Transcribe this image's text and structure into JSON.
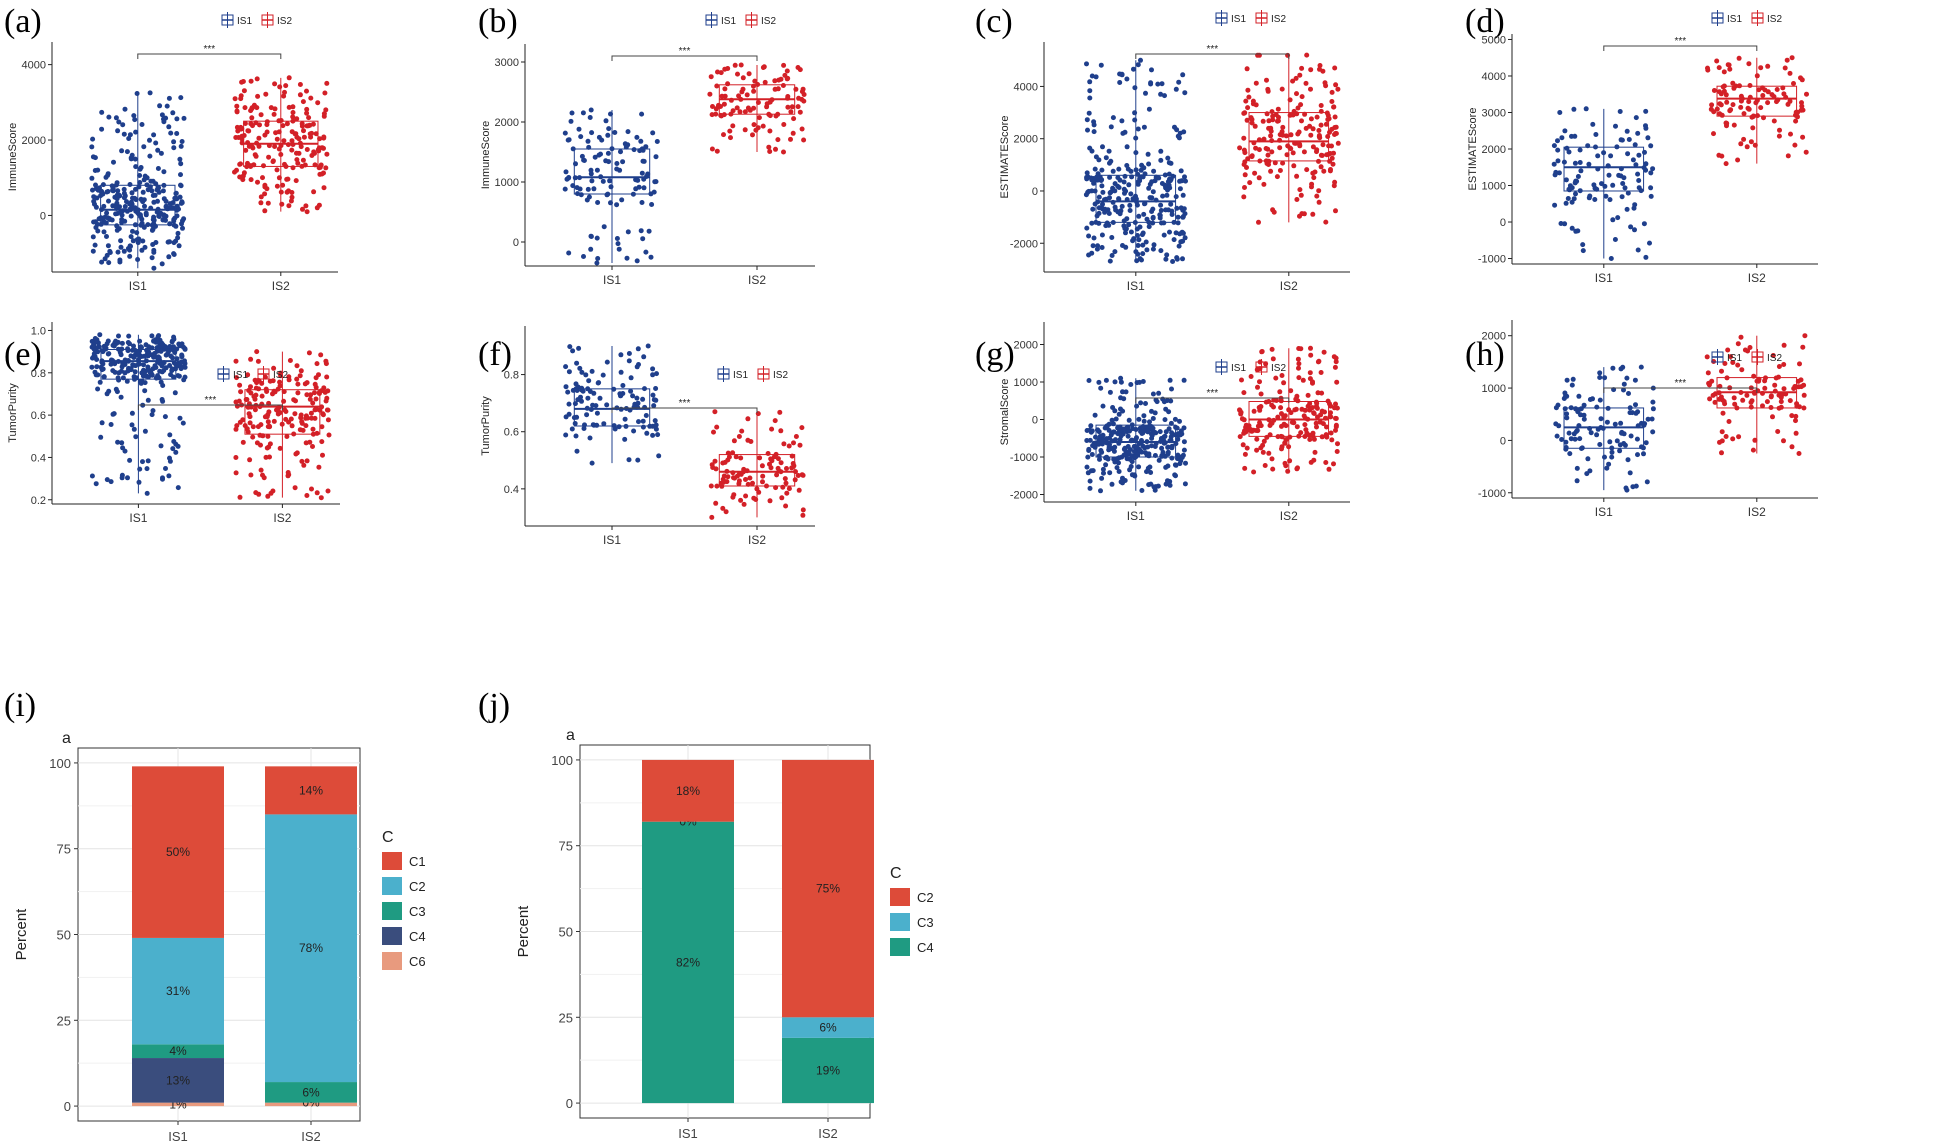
{
  "chart_data": [
    {
      "panel": "(a)",
      "type": "box-scatter",
      "title": "",
      "xlabel": "",
      "ylabel": "ImmuneScore",
      "categories": [
        "IS1",
        "IS2"
      ],
      "legend": [
        "IS1",
        "IS2"
      ],
      "significance": "***",
      "ylim": [
        -1500,
        4600
      ],
      "yticks": [
        0,
        2000,
        4000
      ],
      "series": [
        {
          "name": "IS1",
          "color": "#1f3f8c",
          "q1": -250,
          "median": 150,
          "q3": 800,
          "lower": -1400,
          "upper": 3250,
          "n": 300
        },
        {
          "name": "IS2",
          "color": "#d32027",
          "q1": 1300,
          "median": 1900,
          "q3": 2500,
          "lower": 100,
          "upper": 3650,
          "n": 200
        }
      ]
    },
    {
      "panel": "(b)",
      "type": "box-scatter",
      "title": "",
      "xlabel": "",
      "ylabel": "ImmuneScore",
      "categories": [
        "IS1",
        "IS2"
      ],
      "legend": [
        "IS1",
        "IS2"
      ],
      "significance": "***",
      "ylim": [
        -400,
        3300
      ],
      "yticks": [
        0,
        1000,
        2000,
        3000
      ],
      "series": [
        {
          "name": "IS1",
          "color": "#1f3f8c",
          "q1": 800,
          "median": 1080,
          "q3": 1550,
          "lower": -350,
          "upper": 2200,
          "n": 120
        },
        {
          "name": "IS2",
          "color": "#d32027",
          "q1": 2130,
          "median": 2380,
          "q3": 2620,
          "lower": 1500,
          "upper": 2950,
          "n": 110
        }
      ]
    },
    {
      "panel": "(c)",
      "type": "box-scatter",
      "title": "",
      "xlabel": "",
      "ylabel": "ESTIMATEScore",
      "categories": [
        "IS1",
        "IS2"
      ],
      "legend": [
        "IS1",
        "IS2"
      ],
      "significance": "***",
      "ylim": [
        -3100,
        5700
      ],
      "yticks": [
        -2000,
        0,
        2000,
        4000
      ],
      "series": [
        {
          "name": "IS1",
          "color": "#1f3f8c",
          "q1": -1200,
          "median": -400,
          "q3": 600,
          "lower": -2700,
          "upper": 5000,
          "n": 300
        },
        {
          "name": "IS2",
          "color": "#d32027",
          "q1": 1150,
          "median": 1900,
          "q3": 3000,
          "lower": -1200,
          "upper": 5200,
          "n": 200
        }
      ]
    },
    {
      "panel": "(d)",
      "type": "box-scatter",
      "title": "",
      "xlabel": "",
      "ylabel": "ESTIMATEScore",
      "categories": [
        "IS1",
        "IS2"
      ],
      "legend": [
        "IS1",
        "IS2"
      ],
      "significance": "***",
      "ylim": [
        -1150,
        5150
      ],
      "yticks": [
        -1000,
        0,
        1000,
        2000,
        3000,
        4000,
        5000
      ],
      "series": [
        {
          "name": "IS1",
          "color": "#1f3f8c",
          "q1": 850,
          "median": 1500,
          "q3": 2050,
          "lower": -1000,
          "upper": 3100,
          "n": 120
        },
        {
          "name": "IS2",
          "color": "#d32027",
          "q1": 2900,
          "median": 3380,
          "q3": 3720,
          "lower": 1600,
          "upper": 4500,
          "n": 110
        }
      ]
    },
    {
      "panel": "(e)",
      "type": "box-scatter",
      "title": "",
      "xlabel": "",
      "ylabel": "TumorPurity",
      "categories": [
        "IS1",
        "IS2"
      ],
      "legend": [
        "IS1",
        "IS2"
      ],
      "significance": "***",
      "ylim": [
        0.18,
        1.04
      ],
      "yticks": [
        "0.2",
        "0.4",
        "0.6",
        "0.8",
        "1.0"
      ],
      "series": [
        {
          "name": "IS1",
          "color": "#1f3f8c",
          "q1": 0.77,
          "median": 0.855,
          "q3": 0.91,
          "lower": 0.23,
          "upper": 0.98,
          "n": 300
        },
        {
          "name": "IS2",
          "color": "#d32027",
          "q1": 0.51,
          "median": 0.64,
          "q3": 0.72,
          "lower": 0.21,
          "upper": 0.9,
          "n": 200
        }
      ]
    },
    {
      "panel": "(f)",
      "type": "box-scatter",
      "title": "",
      "xlabel": "",
      "ylabel": "TumorPurity",
      "categories": [
        "IS1",
        "IS2"
      ],
      "legend": [
        "IS1",
        "IS2"
      ],
      "significance": "***",
      "ylim": [
        0.27,
        0.97
      ],
      "yticks": [
        "0.4",
        "0.6",
        "0.8"
      ],
      "series": [
        {
          "name": "IS1",
          "color": "#1f3f8c",
          "q1": 0.62,
          "median": 0.68,
          "q3": 0.75,
          "lower": 0.49,
          "upper": 0.9,
          "n": 120
        },
        {
          "name": "IS2",
          "color": "#d32027",
          "q1": 0.41,
          "median": 0.46,
          "q3": 0.52,
          "lower": 0.3,
          "upper": 0.67,
          "n": 110
        }
      ]
    },
    {
      "panel": "(g)",
      "type": "box-scatter",
      "title": "",
      "xlabel": "",
      "ylabel": "StromalScore",
      "categories": [
        "IS1",
        "IS2"
      ],
      "legend": [
        "IS1",
        "IS2"
      ],
      "significance": "***",
      "ylim": [
        -2200,
        2600
      ],
      "yticks": [
        -2000,
        -1000,
        0,
        1000,
        2000
      ],
      "series": [
        {
          "name": "IS1",
          "color": "#1f3f8c",
          "q1": -1000,
          "median": -600,
          "q3": -150,
          "lower": -1900,
          "upper": 1100,
          "n": 300
        },
        {
          "name": "IS2",
          "color": "#d32027",
          "q1": -450,
          "median": 0,
          "q3": 480,
          "lower": -1400,
          "upper": 1900,
          "n": 200
        }
      ]
    },
    {
      "panel": "(h)",
      "type": "box-scatter",
      "title": "",
      "xlabel": "",
      "ylabel": "",
      "categories": [
        "IS1",
        "IS2"
      ],
      "legend": [
        "IS1",
        "IS2"
      ],
      "significance": "***",
      "ylim": [
        -1100,
        2300
      ],
      "yticks": [
        -1000,
        0,
        1000,
        2000
      ],
      "series": [
        {
          "name": "IS1",
          "color": "#1f3f8c",
          "q1": -150,
          "median": 250,
          "q3": 620,
          "lower": -950,
          "upper": 1400,
          "n": 120
        },
        {
          "name": "IS2",
          "color": "#d32027",
          "q1": 620,
          "median": 920,
          "q3": 1200,
          "lower": -250,
          "upper": 2000,
          "n": 110
        }
      ]
    },
    {
      "panel": "(i)",
      "type": "bar",
      "stacked": true,
      "title": "a",
      "xlabel": "",
      "ylabel": "Percent",
      "categories": [
        "IS1",
        "IS2"
      ],
      "ylim": [
        0,
        100
      ],
      "yticks": [
        0,
        25,
        50,
        75,
        100
      ],
      "legend_title": "C",
      "legend": [
        "C1",
        "C2",
        "C3",
        "C4",
        "C6"
      ],
      "series": [
        {
          "name": "C6",
          "color": "#e89a7e",
          "values": [
            1,
            1
          ],
          "labels": [
            "1%",
            ""
          ]
        },
        {
          "name": "C4",
          "color": "#3a4d7d",
          "values": [
            13,
            0
          ],
          "labels": [
            "13%",
            "0%"
          ]
        },
        {
          "name": "C3",
          "color": "#1f9b82",
          "values": [
            4,
            6
          ],
          "labels": [
            "4%",
            "6%"
          ]
        },
        {
          "name": "C2",
          "color": "#4bb0cc",
          "values": [
            31,
            78
          ],
          "labels": [
            "31%",
            "78%"
          ]
        },
        {
          "name": "C1",
          "color": "#dd4b39",
          "values": [
            50,
            14
          ],
          "labels": [
            "50%",
            "14%"
          ]
        }
      ]
    },
    {
      "panel": "(j)",
      "type": "bar",
      "stacked": true,
      "title": "a",
      "xlabel": "",
      "ylabel": "Percent",
      "categories": [
        "IS1",
        "IS2"
      ],
      "ylim": [
        0,
        100
      ],
      "yticks": [
        0,
        25,
        50,
        75,
        100
      ],
      "legend_title": "C",
      "legend": [
        "C2",
        "C3",
        "C4"
      ],
      "series": [
        {
          "name": "C4",
          "color": "#1f9b82",
          "values": [
            82,
            19
          ],
          "labels": [
            "82%",
            "19%"
          ]
        },
        {
          "name": "C3",
          "color": "#4bb0cc",
          "values": [
            0,
            6
          ],
          "labels": [
            "0%",
            "6%"
          ]
        },
        {
          "name": "C2",
          "color": "#dd4b39",
          "values": [
            18,
            75
          ],
          "labels": [
            "18%",
            "75%"
          ]
        }
      ]
    }
  ]
}
